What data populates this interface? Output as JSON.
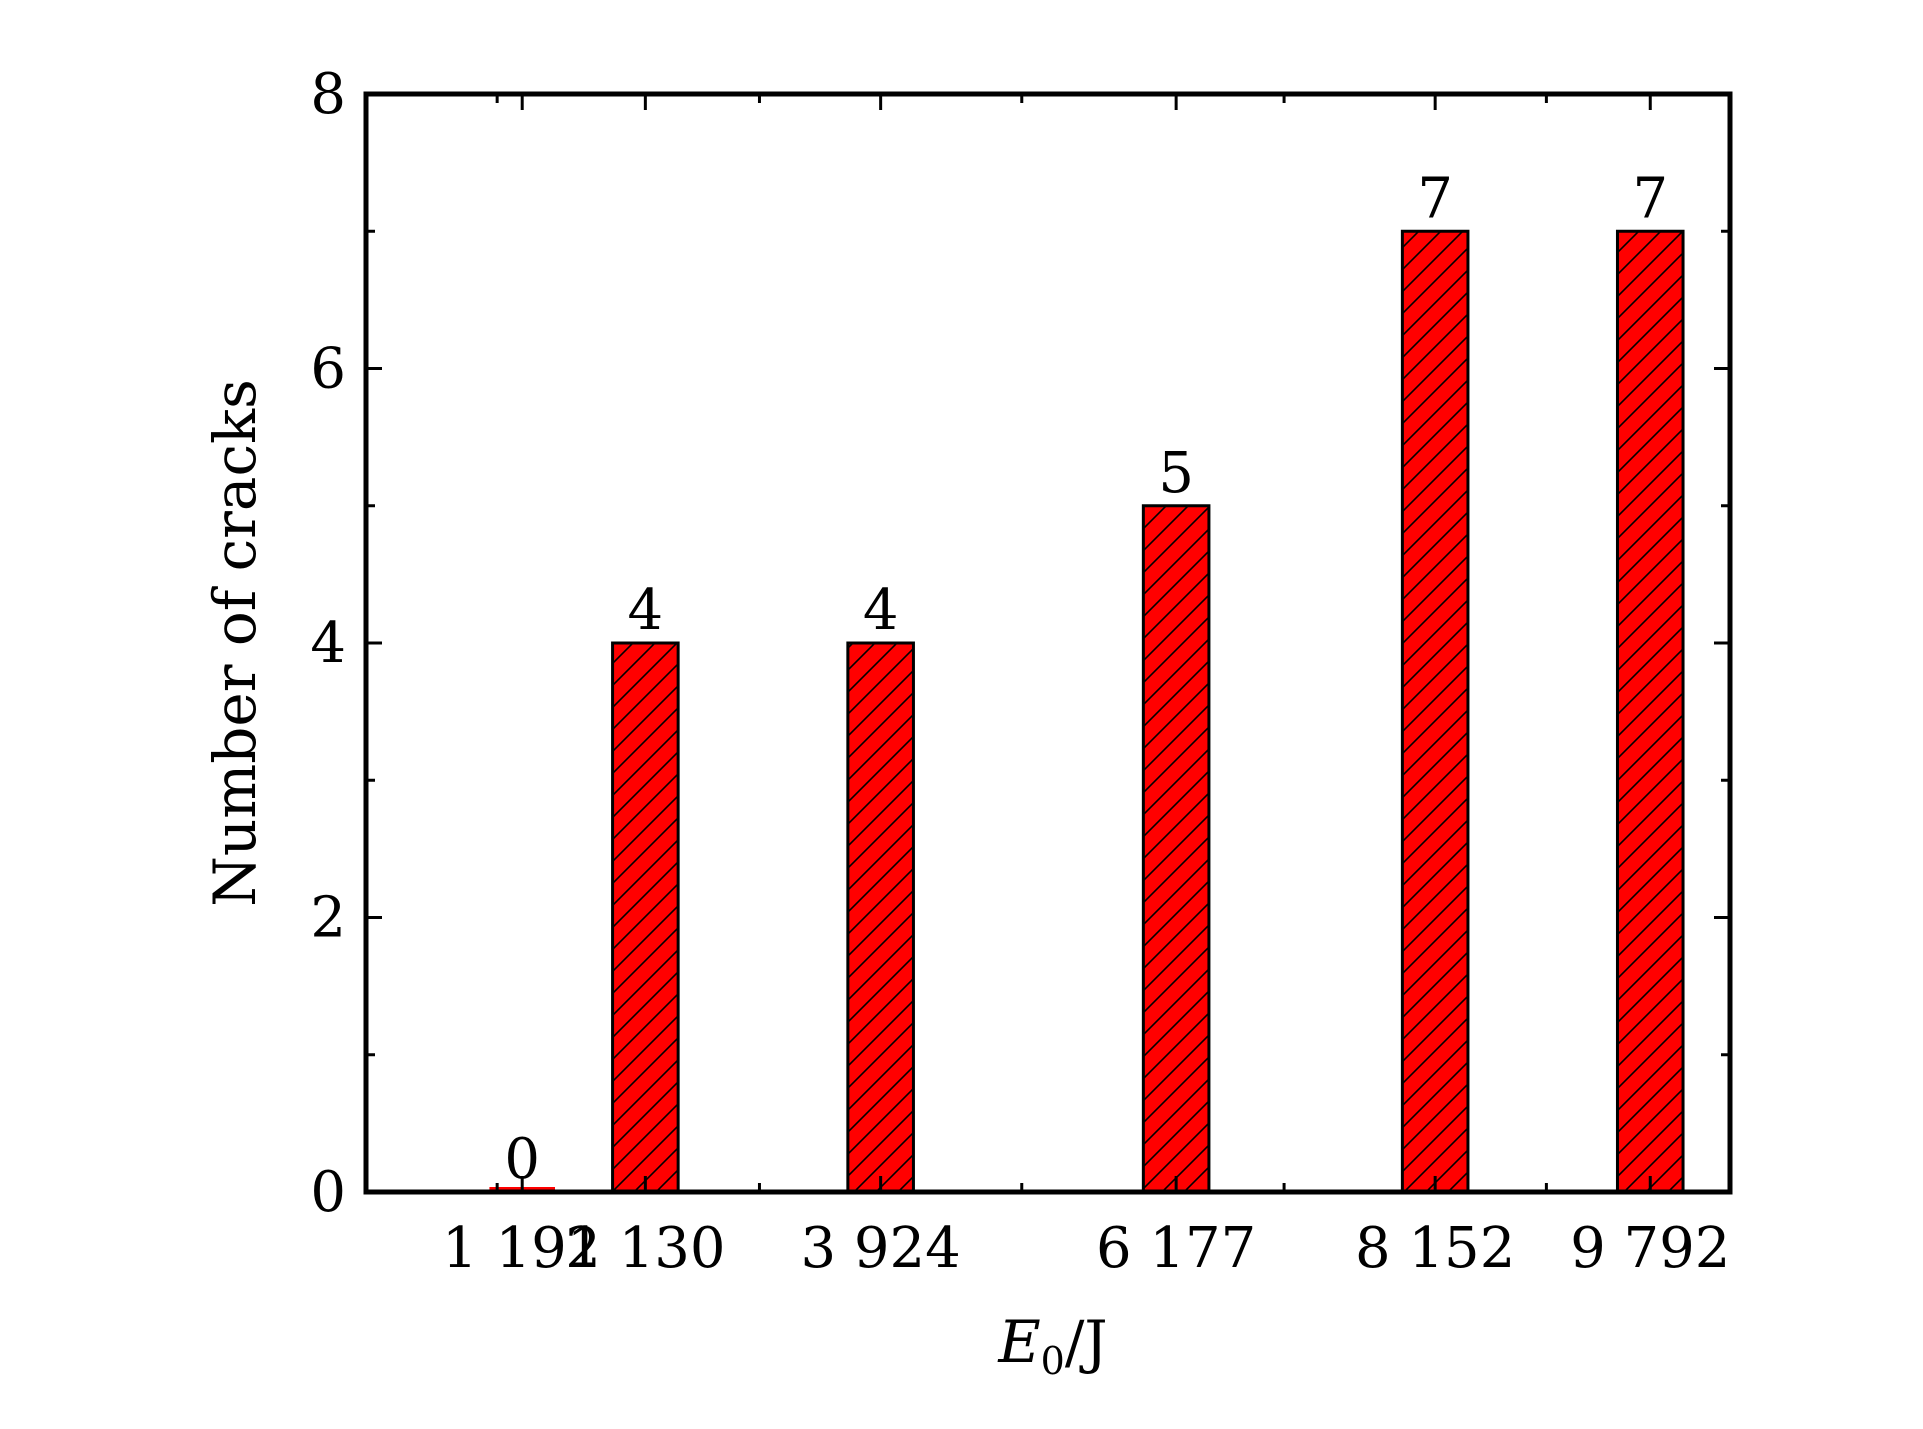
{
  "chart_data": {
    "type": "bar",
    "categories": [
      "1 191",
      "2 130",
      "3 924",
      "6 177",
      "8 152",
      "9 792"
    ],
    "x": [
      1191,
      2130,
      3924,
      6177,
      8152,
      9792
    ],
    "values": [
      0,
      4,
      4,
      5,
      7,
      7
    ],
    "data_labels": [
      "0",
      "4",
      "4",
      "5",
      "7",
      "7"
    ],
    "xlabel_main": "E",
    "xlabel_sub": "0",
    "xlabel_unit": "/J",
    "ylabel": "Number of cracks",
    "ylim": [
      0,
      8
    ],
    "yticks": [
      0,
      2,
      4,
      6,
      8
    ],
    "ytick_labels": [
      "0",
      "2",
      "4",
      "6",
      "8"
    ],
    "yminor_step": 1,
    "xlim": [
      0,
      10400
    ],
    "xminor_ticks": [
      1000,
      3000,
      5000,
      7000,
      9000
    ],
    "bar_width": 500,
    "grid": false,
    "legend": "none",
    "colors": {
      "bar_fill": "#ff0000",
      "bar_edge": "#000000",
      "hatch": "#000000",
      "axis": "#000000"
    },
    "hatch": "diagonal"
  }
}
